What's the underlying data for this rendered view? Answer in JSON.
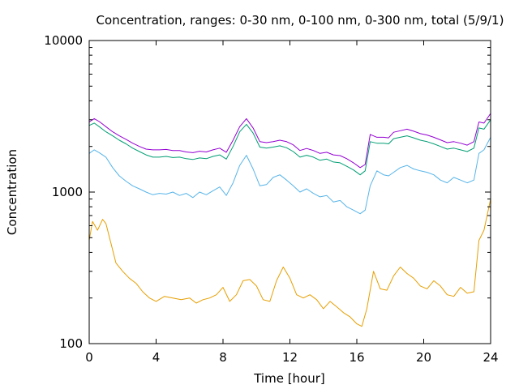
{
  "chart_data": {
    "type": "line",
    "title": "Concentration, ranges: 0-30 nm, 0-100 nm, 0-300 nm, total (5/9/1)",
    "xlabel": "Time [hour]",
    "ylabel": "Concentration",
    "xlim": [
      0,
      24
    ],
    "ylim": [
      100,
      10000
    ],
    "yscale": "log",
    "grid": false,
    "legend": "none",
    "x_ticks": [
      0,
      4,
      8,
      12,
      16,
      20,
      24
    ],
    "x_tick_labels": [
      "0",
      "4",
      "8",
      "12",
      "16",
      "20",
      "24"
    ],
    "y_ticks": [
      100,
      1000,
      10000
    ],
    "y_tick_labels": [
      "100",
      "1000",
      "10000"
    ],
    "series": [
      {
        "color": "#e69f00",
        "points": [
          [
            0.0,
            480
          ],
          [
            0.2,
            640
          ],
          [
            0.5,
            560
          ],
          [
            0.8,
            660
          ],
          [
            1.0,
            620
          ],
          [
            1.3,
            460
          ],
          [
            1.6,
            340
          ],
          [
            2.0,
            300
          ],
          [
            2.4,
            270
          ],
          [
            2.8,
            250
          ],
          [
            3.2,
            220
          ],
          [
            3.6,
            200
          ],
          [
            4.0,
            190
          ],
          [
            4.5,
            205
          ],
          [
            5.0,
            200
          ],
          [
            5.5,
            195
          ],
          [
            6.0,
            200
          ],
          [
            6.4,
            185
          ],
          [
            6.8,
            195
          ],
          [
            7.2,
            200
          ],
          [
            7.6,
            210
          ],
          [
            8.0,
            235
          ],
          [
            8.4,
            190
          ],
          [
            8.8,
            210
          ],
          [
            9.2,
            260
          ],
          [
            9.6,
            265
          ],
          [
            10.0,
            240
          ],
          [
            10.4,
            195
          ],
          [
            10.8,
            190
          ],
          [
            11.2,
            260
          ],
          [
            11.6,
            320
          ],
          [
            12.0,
            270
          ],
          [
            12.4,
            210
          ],
          [
            12.8,
            200
          ],
          [
            13.2,
            210
          ],
          [
            13.6,
            195
          ],
          [
            14.0,
            170
          ],
          [
            14.4,
            190
          ],
          [
            14.8,
            175
          ],
          [
            15.2,
            160
          ],
          [
            15.6,
            150
          ],
          [
            16.0,
            135
          ],
          [
            16.3,
            130
          ],
          [
            16.6,
            170
          ],
          [
            17.0,
            300
          ],
          [
            17.4,
            230
          ],
          [
            17.8,
            225
          ],
          [
            18.2,
            280
          ],
          [
            18.6,
            320
          ],
          [
            19.0,
            290
          ],
          [
            19.4,
            270
          ],
          [
            19.8,
            240
          ],
          [
            20.2,
            230
          ],
          [
            20.6,
            260
          ],
          [
            21.0,
            240
          ],
          [
            21.4,
            210
          ],
          [
            21.8,
            205
          ],
          [
            22.2,
            235
          ],
          [
            22.6,
            215
          ],
          [
            23.0,
            220
          ],
          [
            23.3,
            480
          ],
          [
            23.6,
            560
          ],
          [
            24.0,
            900
          ]
        ]
      },
      {
        "color": "#56b4e9",
        "points": [
          [
            0.0,
            1800
          ],
          [
            0.3,
            1900
          ],
          [
            0.6,
            1820
          ],
          [
            1.0,
            1700
          ],
          [
            1.4,
            1450
          ],
          [
            1.8,
            1280
          ],
          [
            2.2,
            1180
          ],
          [
            2.6,
            1100
          ],
          [
            3.0,
            1050
          ],
          [
            3.4,
            1000
          ],
          [
            3.8,
            960
          ],
          [
            4.2,
            980
          ],
          [
            4.6,
            970
          ],
          [
            5.0,
            1000
          ],
          [
            5.4,
            950
          ],
          [
            5.8,
            980
          ],
          [
            6.2,
            920
          ],
          [
            6.6,
            1000
          ],
          [
            7.0,
            960
          ],
          [
            7.4,
            1020
          ],
          [
            7.8,
            1080
          ],
          [
            8.2,
            950
          ],
          [
            8.6,
            1150
          ],
          [
            9.0,
            1500
          ],
          [
            9.4,
            1750
          ],
          [
            9.8,
            1420
          ],
          [
            10.2,
            1100
          ],
          [
            10.6,
            1120
          ],
          [
            11.0,
            1250
          ],
          [
            11.4,
            1300
          ],
          [
            11.8,
            1200
          ],
          [
            12.2,
            1100
          ],
          [
            12.6,
            1000
          ],
          [
            13.0,
            1050
          ],
          [
            13.4,
            980
          ],
          [
            13.8,
            930
          ],
          [
            14.2,
            950
          ],
          [
            14.6,
            860
          ],
          [
            15.0,
            880
          ],
          [
            15.4,
            800
          ],
          [
            15.8,
            760
          ],
          [
            16.2,
            720
          ],
          [
            16.5,
            760
          ],
          [
            16.8,
            1100
          ],
          [
            17.2,
            1380
          ],
          [
            17.6,
            1300
          ],
          [
            17.9,
            1280
          ],
          [
            18.2,
            1350
          ],
          [
            18.6,
            1450
          ],
          [
            19.0,
            1500
          ],
          [
            19.4,
            1420
          ],
          [
            19.8,
            1380
          ],
          [
            20.2,
            1350
          ],
          [
            20.6,
            1300
          ],
          [
            21.0,
            1200
          ],
          [
            21.4,
            1150
          ],
          [
            21.8,
            1250
          ],
          [
            22.2,
            1200
          ],
          [
            22.6,
            1150
          ],
          [
            23.0,
            1200
          ],
          [
            23.3,
            1800
          ],
          [
            23.6,
            1900
          ],
          [
            24.0,
            2300
          ]
        ]
      },
      {
        "color": "#009e73",
        "points": [
          [
            0.0,
            2750
          ],
          [
            0.3,
            2850
          ],
          [
            0.6,
            2700
          ],
          [
            1.0,
            2500
          ],
          [
            1.4,
            2350
          ],
          [
            1.8,
            2200
          ],
          [
            2.2,
            2080
          ],
          [
            2.6,
            1950
          ],
          [
            3.0,
            1850
          ],
          [
            3.4,
            1760
          ],
          [
            3.8,
            1700
          ],
          [
            4.2,
            1700
          ],
          [
            4.6,
            1720
          ],
          [
            5.0,
            1690
          ],
          [
            5.4,
            1700
          ],
          [
            5.8,
            1660
          ],
          [
            6.2,
            1640
          ],
          [
            6.6,
            1680
          ],
          [
            7.0,
            1660
          ],
          [
            7.4,
            1720
          ],
          [
            7.8,
            1760
          ],
          [
            8.2,
            1650
          ],
          [
            8.6,
            2000
          ],
          [
            9.0,
            2500
          ],
          [
            9.4,
            2800
          ],
          [
            9.8,
            2450
          ],
          [
            10.2,
            1980
          ],
          [
            10.6,
            1950
          ],
          [
            11.0,
            1980
          ],
          [
            11.4,
            2020
          ],
          [
            11.8,
            1960
          ],
          [
            12.2,
            1850
          ],
          [
            12.6,
            1700
          ],
          [
            13.0,
            1750
          ],
          [
            13.4,
            1700
          ],
          [
            13.8,
            1620
          ],
          [
            14.2,
            1650
          ],
          [
            14.6,
            1580
          ],
          [
            15.0,
            1560
          ],
          [
            15.4,
            1480
          ],
          [
            15.8,
            1400
          ],
          [
            16.2,
            1300
          ],
          [
            16.5,
            1380
          ],
          [
            16.8,
            2150
          ],
          [
            17.2,
            2100
          ],
          [
            17.6,
            2100
          ],
          [
            17.9,
            2080
          ],
          [
            18.2,
            2250
          ],
          [
            18.6,
            2300
          ],
          [
            19.0,
            2350
          ],
          [
            19.4,
            2280
          ],
          [
            19.8,
            2200
          ],
          [
            20.2,
            2150
          ],
          [
            20.6,
            2080
          ],
          [
            21.0,
            2000
          ],
          [
            21.4,
            1920
          ],
          [
            21.8,
            1950
          ],
          [
            22.2,
            1900
          ],
          [
            22.6,
            1850
          ],
          [
            23.0,
            1950
          ],
          [
            23.3,
            2650
          ],
          [
            23.6,
            2600
          ],
          [
            24.0,
            3000
          ]
        ]
      },
      {
        "color": "#9400d3",
        "points": [
          [
            0.0,
            2900
          ],
          [
            0.3,
            3050
          ],
          [
            0.6,
            2920
          ],
          [
            1.0,
            2700
          ],
          [
            1.4,
            2500
          ],
          [
            1.8,
            2350
          ],
          [
            2.2,
            2230
          ],
          [
            2.6,
            2100
          ],
          [
            3.0,
            2000
          ],
          [
            3.4,
            1920
          ],
          [
            3.8,
            1900
          ],
          [
            4.2,
            1900
          ],
          [
            4.6,
            1910
          ],
          [
            5.0,
            1880
          ],
          [
            5.4,
            1880
          ],
          [
            5.8,
            1840
          ],
          [
            6.2,
            1820
          ],
          [
            6.6,
            1860
          ],
          [
            7.0,
            1840
          ],
          [
            7.4,
            1900
          ],
          [
            7.8,
            1950
          ],
          [
            8.2,
            1830
          ],
          [
            8.6,
            2200
          ],
          [
            9.0,
            2700
          ],
          [
            9.4,
            3050
          ],
          [
            9.8,
            2650
          ],
          [
            10.2,
            2150
          ],
          [
            10.6,
            2120
          ],
          [
            11.0,
            2150
          ],
          [
            11.4,
            2200
          ],
          [
            11.8,
            2150
          ],
          [
            12.2,
            2050
          ],
          [
            12.6,
            1880
          ],
          [
            13.0,
            1940
          ],
          [
            13.4,
            1880
          ],
          [
            13.8,
            1800
          ],
          [
            14.2,
            1830
          ],
          [
            14.6,
            1760
          ],
          [
            15.0,
            1740
          ],
          [
            15.4,
            1660
          ],
          [
            15.8,
            1560
          ],
          [
            16.2,
            1450
          ],
          [
            16.5,
            1520
          ],
          [
            16.8,
            2400
          ],
          [
            17.2,
            2300
          ],
          [
            17.6,
            2300
          ],
          [
            17.9,
            2280
          ],
          [
            18.2,
            2480
          ],
          [
            18.6,
            2540
          ],
          [
            19.0,
            2600
          ],
          [
            19.4,
            2520
          ],
          [
            19.8,
            2430
          ],
          [
            20.2,
            2380
          ],
          [
            20.6,
            2300
          ],
          [
            21.0,
            2210
          ],
          [
            21.4,
            2120
          ],
          [
            21.8,
            2150
          ],
          [
            22.2,
            2100
          ],
          [
            22.6,
            2040
          ],
          [
            23.0,
            2150
          ],
          [
            23.3,
            2900
          ],
          [
            23.6,
            2850
          ],
          [
            24.0,
            3300
          ]
        ]
      }
    ]
  }
}
